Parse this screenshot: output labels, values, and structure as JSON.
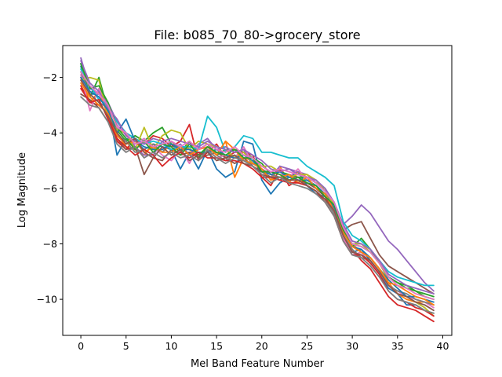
{
  "chart_data": {
    "type": "line",
    "title": "File: b085_70_80->grocery_store",
    "xlabel": "Mel Band Feature Number",
    "ylabel": "Log Magnitude",
    "xlim": [
      -2,
      41
    ],
    "ylim": [
      -11.3,
      -0.85
    ],
    "xticks": [
      0,
      5,
      10,
      15,
      20,
      25,
      30,
      35,
      40
    ],
    "yticks": [
      -2,
      -4,
      -6,
      -8,
      -10
    ],
    "xtick_labels": [
      "0",
      "5",
      "10",
      "15",
      "20",
      "25",
      "30",
      "35",
      "40"
    ],
    "ytick_labels": [
      "−2",
      "−4",
      "−6",
      "−8",
      "−10"
    ],
    "grid": false,
    "colors": [
      "#1f77b4",
      "#ff7f0e",
      "#2ca02c",
      "#d62728",
      "#9467bd",
      "#8c564b",
      "#e377c2",
      "#7f7f7f",
      "#bcbd22",
      "#17becf"
    ],
    "x": [
      0,
      1,
      2,
      3,
      4,
      5,
      6,
      7,
      8,
      9,
      10,
      11,
      12,
      13,
      14,
      15,
      16,
      17,
      18,
      19,
      20,
      21,
      22,
      23,
      24,
      25,
      26,
      27,
      28,
      29,
      30,
      31,
      32,
      33,
      34,
      35,
      36,
      37,
      38,
      39
    ],
    "base_profile": [
      -1.9,
      -2.5,
      -2.7,
      -3.2,
      -3.9,
      -4.2,
      -4.4,
      -4.5,
      -4.5,
      -4.6,
      -4.5,
      -4.6,
      -4.5,
      -4.7,
      -4.6,
      -4.7,
      -4.8,
      -4.8,
      -4.8,
      -5.0,
      -5.3,
      -5.5,
      -5.5,
      -5.6,
      -5.6,
      -5.7,
      -5.9,
      -6.2,
      -6.7,
      -7.5,
      -8.1,
      -8.2,
      -8.4,
      -8.8,
      -9.3,
      -9.6,
      -9.8,
      -9.9,
      -10.0,
      -10.1
    ],
    "series": [
      {
        "values": [
          -1.6,
          -2.6,
          -2.6,
          -3.0,
          -4.8,
          -4.2,
          -4.3,
          -4.6,
          -4.4,
          -4.5,
          -4.6,
          -5.3,
          -4.7,
          -5.3,
          -4.6,
          -5.3,
          -5.6,
          -5.4,
          -4.3,
          -4.4,
          -5.7,
          -6.2,
          -5.8,
          -5.6,
          -5.4,
          -5.9,
          -6.2,
          -6.3,
          -6.9,
          -7.8,
          -8.3,
          -8.2,
          -8.6,
          -9.1,
          -9.6,
          -9.8,
          -10.2,
          -10.2,
          -10.4,
          -10.5
        ]
      },
      {
        "values": [
          -2.0,
          -2.9,
          -2.5,
          -3.4,
          -4.0,
          -4.5,
          -4.6,
          -4.8,
          -4.4,
          -4.7,
          -4.4,
          -4.5,
          -4.6,
          -4.9,
          -4.5,
          -4.8,
          -4.3,
          -5.6,
          -4.9,
          -5.0,
          -5.3,
          -5.7,
          -5.2,
          -5.8,
          -5.4,
          -5.6,
          -5.8,
          -6.1,
          -6.5,
          -7.5,
          -8.0,
          -8.3,
          -8.5,
          -8.9,
          -9.4,
          -9.8,
          -10.0,
          -10.1,
          -10.1,
          -10.2
        ]
      },
      {
        "values": [
          -1.5,
          -2.7,
          -2.0,
          -3.2,
          -3.9,
          -4.3,
          -4.1,
          -4.3,
          -4.0,
          -3.8,
          -4.4,
          -4.7,
          -4.3,
          -4.9,
          -4.5,
          -4.8,
          -4.6,
          -4.6,
          -4.7,
          -4.9,
          -5.1,
          -5.5,
          -5.4,
          -5.5,
          -5.6,
          -5.6,
          -5.8,
          -6.0,
          -6.6,
          -7.4,
          -8.1,
          -7.8,
          -8.2,
          -8.7,
          -9.2,
          -9.4,
          -9.5,
          -9.7,
          -9.9,
          -10.0
        ]
      },
      {
        "values": [
          -2.3,
          -2.9,
          -3.0,
          -3.3,
          -4.3,
          -4.6,
          -4.2,
          -4.4,
          -4.1,
          -4.2,
          -4.5,
          -4.3,
          -3.7,
          -5.0,
          -4.7,
          -4.4,
          -4.9,
          -4.7,
          -4.7,
          -4.8,
          -5.6,
          -5.9,
          -5.3,
          -5.9,
          -5.7,
          -5.8,
          -6.0,
          -6.3,
          -6.9,
          -7.8,
          -8.2,
          -8.6,
          -8.9,
          -9.4,
          -9.9,
          -10.2,
          -10.3,
          -10.4,
          -10.6,
          -10.8
        ]
      },
      {
        "values": [
          -1.3,
          -2.4,
          -2.6,
          -2.9,
          -3.6,
          -4.0,
          -4.5,
          -4.8,
          -4.8,
          -4.3,
          -4.6,
          -4.4,
          -4.8,
          -4.4,
          -4.2,
          -4.6,
          -4.5,
          -4.7,
          -4.6,
          -5.2,
          -5.5,
          -5.6,
          -5.2,
          -5.3,
          -5.4,
          -5.5,
          -5.8,
          -6.1,
          -6.6,
          -7.3,
          -7.0,
          -6.6,
          -6.9,
          -7.4,
          -7.9,
          -8.2,
          -8.6,
          -9.0,
          -9.4,
          -9.7
        ]
      },
      {
        "values": [
          -2.6,
          -2.8,
          -3.1,
          -3.6,
          -4.2,
          -4.6,
          -4.5,
          -5.5,
          -4.9,
          -5.0,
          -4.6,
          -4.8,
          -4.7,
          -4.9,
          -4.8,
          -4.7,
          -4.9,
          -5.1,
          -4.9,
          -5.2,
          -5.4,
          -5.6,
          -5.7,
          -5.5,
          -5.6,
          -5.8,
          -6.0,
          -6.3,
          -6.7,
          -7.5,
          -7.3,
          -7.2,
          -7.8,
          -8.4,
          -8.8,
          -9.0,
          -9.2,
          -9.4,
          -9.6,
          -9.8
        ]
      },
      {
        "values": [
          -1.9,
          -3.2,
          -2.4,
          -3.1,
          -3.7,
          -4.1,
          -4.4,
          -4.2,
          -4.5,
          -4.8,
          -5.0,
          -4.6,
          -5.1,
          -4.5,
          -4.6,
          -4.9,
          -4.8,
          -4.9,
          -4.5,
          -5.1,
          -5.2,
          -5.4,
          -5.5,
          -5.6,
          -5.3,
          -5.7,
          -5.9,
          -6.2,
          -6.6,
          -7.8,
          -8.4,
          -8.3,
          -8.7,
          -9.0,
          -9.5,
          -9.7,
          -9.9,
          -10.0,
          -10.1,
          -10.3
        ]
      },
      {
        "values": [
          -1.8,
          -2.6,
          -2.9,
          -3.1,
          -4.1,
          -4.3,
          -4.7,
          -4.6,
          -4.4,
          -4.7,
          -4.3,
          -4.6,
          -4.5,
          -4.6,
          -4.4,
          -4.8,
          -5.0,
          -4.8,
          -5.0,
          -5.1,
          -5.3,
          -5.5,
          -5.6,
          -5.5,
          -5.7,
          -5.9,
          -6.1,
          -6.4,
          -6.9,
          -7.7,
          -8.2,
          -8.5,
          -8.6,
          -9.0,
          -9.5,
          -9.7,
          -9.8,
          -10.0,
          -10.1,
          -10.2
        ]
      },
      {
        "values": [
          -2.1,
          -2.0,
          -2.1,
          -3.4,
          -3.9,
          -4.0,
          -4.6,
          -3.8,
          -4.6,
          -4.1,
          -3.9,
          -4.0,
          -4.6,
          -4.3,
          -4.4,
          -4.5,
          -4.6,
          -4.9,
          -4.7,
          -5.1,
          -5.2,
          -5.2,
          -5.4,
          -5.6,
          -5.5,
          -5.5,
          -5.7,
          -6.1,
          -6.6,
          -7.5,
          -8.0,
          -8.0,
          -8.3,
          -8.7,
          -9.3,
          -9.6,
          -9.9,
          -10.1,
          -10.3,
          -10.6
        ]
      },
      {
        "values": [
          -1.7,
          -2.3,
          -2.8,
          -3.0,
          -3.6,
          -4.0,
          -4.2,
          -4.4,
          -4.3,
          -4.4,
          -4.6,
          -4.5,
          -4.5,
          -4.6,
          -3.4,
          -3.8,
          -4.7,
          -4.5,
          -4.1,
          -4.2,
          -4.7,
          -4.7,
          -4.8,
          -4.9,
          -4.9,
          -5.2,
          -5.4,
          -5.6,
          -5.9,
          -7.2,
          -7.7,
          -7.9,
          -8.2,
          -8.6,
          -9.0,
          -9.2,
          -9.3,
          -9.4,
          -9.5,
          -9.5
        ]
      },
      {
        "values": [
          -2.0,
          -2.5,
          -2.7,
          -3.2,
          -4.0,
          -3.5,
          -4.3,
          -4.5,
          -4.6,
          -4.6,
          -4.4,
          -4.6,
          -4.6,
          -4.7,
          -4.7,
          -4.6,
          -4.8,
          -4.9,
          -4.8,
          -5.0,
          -5.4,
          -5.5,
          -5.4,
          -5.6,
          -5.7,
          -5.7,
          -5.9,
          -6.2,
          -6.7,
          -7.6,
          -8.1,
          -8.2,
          -8.5,
          -8.9,
          -9.3,
          -9.6,
          -9.9,
          -9.9,
          -10.0,
          -10.1
        ]
      },
      {
        "values": [
          -2.2,
          -2.7,
          -3.0,
          -3.3,
          -4.1,
          -4.4,
          -4.3,
          -4.7,
          -4.5,
          -4.7,
          -4.7,
          -4.5,
          -4.8,
          -4.6,
          -4.5,
          -4.8,
          -4.3,
          -4.6,
          -5.0,
          -5.1,
          -5.3,
          -5.7,
          -5.6,
          -5.5,
          -5.8,
          -5.6,
          -6.0,
          -6.2,
          -6.8,
          -7.6,
          -8.1,
          -8.3,
          -8.5,
          -8.9,
          -9.4,
          -9.5,
          -9.7,
          -9.9,
          -10.0,
          -10.2
        ]
      },
      {
        "values": [
          -1.5,
          -2.4,
          -2.3,
          -2.9,
          -3.8,
          -4.2,
          -4.6,
          -4.3,
          -4.7,
          -4.4,
          -4.5,
          -4.8,
          -4.4,
          -4.8,
          -4.5,
          -4.7,
          -4.8,
          -4.6,
          -4.9,
          -4.9,
          -5.4,
          -5.4,
          -5.5,
          -5.7,
          -5.6,
          -5.8,
          -5.9,
          -6.3,
          -6.6,
          -7.5,
          -8.0,
          -8.1,
          -8.3,
          -8.7,
          -9.2,
          -9.4,
          -9.6,
          -9.7,
          -9.8,
          -9.9
        ]
      },
      {
        "values": [
          -2.4,
          -2.9,
          -2.8,
          -3.5,
          -4.2,
          -4.5,
          -4.8,
          -4.6,
          -4.8,
          -5.2,
          -4.9,
          -4.7,
          -4.9,
          -4.7,
          -4.9,
          -4.9,
          -5.0,
          -5.0,
          -5.1,
          -5.3,
          -5.6,
          -5.6,
          -5.7,
          -5.8,
          -5.8,
          -5.9,
          -6.1,
          -6.5,
          -7.0,
          -7.9,
          -8.4,
          -8.4,
          -8.7,
          -9.1,
          -9.7,
          -10.0,
          -10.1,
          -10.3,
          -10.4,
          -10.6
        ]
      },
      {
        "values": [
          -1.4,
          -2.2,
          -2.5,
          -3.1,
          -3.5,
          -4.1,
          -4.3,
          -4.4,
          -4.2,
          -4.3,
          -4.2,
          -4.3,
          -4.4,
          -4.5,
          -4.3,
          -4.5,
          -4.6,
          -4.7,
          -4.6,
          -4.8,
          -5.0,
          -5.3,
          -5.4,
          -5.3,
          -5.5,
          -5.6,
          -5.7,
          -6.0,
          -6.5,
          -7.3,
          -7.9,
          -8.0,
          -8.2,
          -8.6,
          -9.1,
          -9.3,
          -9.5,
          -9.6,
          -9.7,
          -9.8
        ]
      },
      {
        "values": [
          -2.1,
          -2.6,
          -2.9,
          -3.4,
          -4.0,
          -4.4,
          -4.2,
          -4.7,
          -4.9,
          -4.5,
          -4.8,
          -4.6,
          -5.0,
          -4.8,
          -4.7,
          -5.0,
          -4.9,
          -4.8,
          -5.1,
          -5.2,
          -5.5,
          -5.6,
          -5.6,
          -5.7,
          -5.7,
          -5.9,
          -6.1,
          -6.4,
          -6.8,
          -7.7,
          -8.3,
          -8.4,
          -8.6,
          -9.0,
          -9.5,
          -9.8,
          -9.9,
          -10.1,
          -10.2,
          -10.4
        ]
      },
      {
        "values": [
          -1.8,
          -2.3,
          -2.6,
          -3.0,
          -3.8,
          -4.0,
          -4.4,
          -4.3,
          -4.5,
          -4.4,
          -4.3,
          -4.5,
          -4.3,
          -4.6,
          -4.4,
          -4.6,
          -4.7,
          -4.5,
          -4.8,
          -4.9,
          -5.2,
          -5.4,
          -5.3,
          -5.4,
          -5.5,
          -5.6,
          -5.8,
          -6.1,
          -6.5,
          -7.4,
          -8.0,
          -8.1,
          -8.3,
          -8.7,
          -9.2,
          -9.5,
          -9.6,
          -9.8,
          -9.9,
          -10.0
        ]
      },
      {
        "values": [
          -2.7,
          -3.0,
          -3.1,
          -3.6,
          -4.4,
          -4.7,
          -4.5,
          -4.9,
          -4.7,
          -4.9,
          -4.7,
          -4.9,
          -4.8,
          -5.0,
          -4.6,
          -4.9,
          -5.1,
          -4.9,
          -5.0,
          -5.2,
          -5.5,
          -5.8,
          -5.6,
          -5.8,
          -5.9,
          -6.0,
          -6.2,
          -6.5,
          -7.0,
          -7.9,
          -8.4,
          -8.5,
          -8.8,
          -9.2,
          -9.7,
          -10.0,
          -10.1,
          -10.2,
          -10.4,
          -10.5
        ]
      }
    ]
  }
}
